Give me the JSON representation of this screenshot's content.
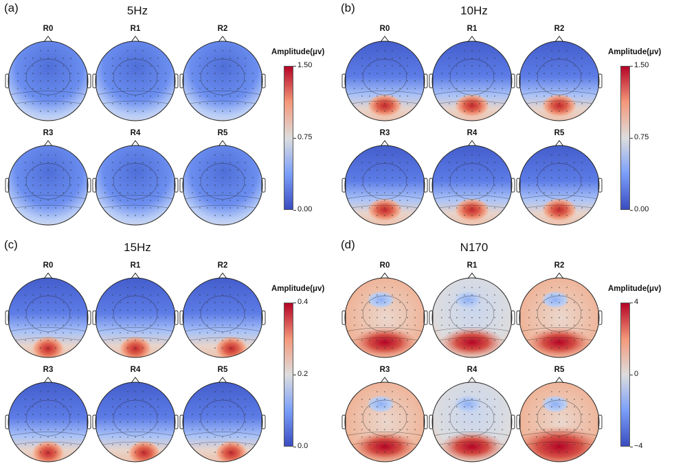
{
  "panels": [
    {
      "letter": "(a)",
      "title": "5Hz",
      "colorbar": {
        "title": "Amplitude(μv)",
        "ticks": [
          "1.50",
          "0.75",
          "0.00"
        ],
        "range": [
          0,
          1.5
        ]
      },
      "maps": [
        {
          "label": "R0",
          "pattern": "occ-wide"
        },
        {
          "label": "R1",
          "pattern": "occ-wide"
        },
        {
          "label": "R2",
          "pattern": "occ-wide"
        },
        {
          "label": "R3",
          "pattern": "occ-wide"
        },
        {
          "label": "R4",
          "pattern": "occ-wide"
        },
        {
          "label": "R5",
          "pattern": "occ-wide"
        }
      ]
    },
    {
      "letter": "(b)",
      "title": "10Hz",
      "colorbar": {
        "title": "Amplitude(μv)",
        "ticks": [
          "1.50",
          "0.75",
          "0.00"
        ],
        "range": [
          0,
          1.5
        ]
      },
      "maps": [
        {
          "label": "R0",
          "pattern": "occ-focal"
        },
        {
          "label": "R1",
          "pattern": "occ-focal"
        },
        {
          "label": "R2",
          "pattern": "occ-focal"
        },
        {
          "label": "R3",
          "pattern": "occ-focal"
        },
        {
          "label": "R4",
          "pattern": "occ-focal"
        },
        {
          "label": "R5",
          "pattern": "occ-focal"
        }
      ]
    },
    {
      "letter": "(c)",
      "title": "15Hz",
      "colorbar": {
        "title": "Amplitude(μv)",
        "ticks": [
          "0.4",
          "0.2",
          "0.0"
        ],
        "range": [
          0,
          0.4
        ]
      },
      "maps": [
        {
          "label": "R0",
          "pattern": "occ-center"
        },
        {
          "label": "R1",
          "pattern": "occ-center"
        },
        {
          "label": "R2",
          "pattern": "occ-right"
        },
        {
          "label": "R3",
          "pattern": "occ-center"
        },
        {
          "label": "R4",
          "pattern": "occ-right"
        },
        {
          "label": "R5",
          "pattern": "occ-right"
        }
      ]
    },
    {
      "letter": "(d)",
      "title": "N170",
      "colorbar": {
        "title": "Amplitude(μv)",
        "ticks": [
          "4",
          "0",
          "−4"
        ],
        "range": [
          -4,
          4
        ]
      },
      "maps": [
        {
          "label": "R0",
          "pattern": "n170-warm"
        },
        {
          "label": "R1",
          "pattern": "n170-neutral"
        },
        {
          "label": "R2",
          "pattern": "n170-warm"
        },
        {
          "label": "R3",
          "pattern": "n170-warm"
        },
        {
          "label": "R4",
          "pattern": "n170-neutral"
        },
        {
          "label": "R5",
          "pattern": "n170-hot"
        }
      ]
    }
  ]
}
